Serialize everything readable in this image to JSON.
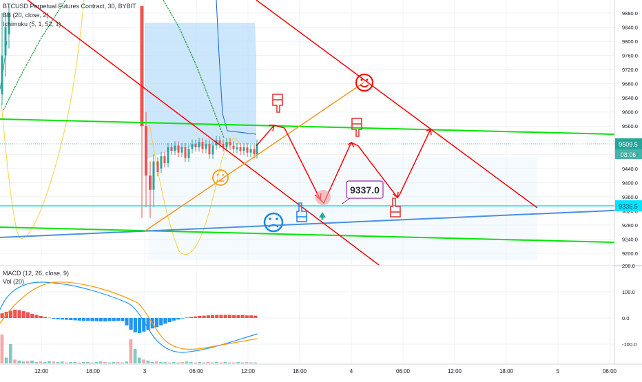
{
  "legend": {
    "symbol_line": "BTCUSD Perpetual Futures Contract, 30, BYBIT",
    "bb_line": "BB (20, close, 2)",
    "ichimoku_line": "Ichimoku (5, 1, 52, 1)",
    "macd_line": "MACD (12, 26, close, 9)",
    "vol_line": "Vol (20)"
  },
  "price_axis": {
    "ticks": [
      "9880.0",
      "9840.0",
      "9800.0",
      "9760.0",
      "9720.0",
      "9680.0",
      "9640.0",
      "9600.0",
      "9560.0",
      "9520.0",
      "9480.0",
      "9440.0",
      "9400.0",
      "9360.0",
      "9320.0",
      "9280.0",
      "9240.0",
      "9200.0"
    ],
    "current_price_label": "9509.5",
    "countdown_label": "08:06",
    "horizontal_level_label": "9336.5"
  },
  "macd_axis": {
    "ticks": [
      "200.0",
      "100.0",
      "0.0",
      "-100.0"
    ]
  },
  "time_axis": {
    "ticks": [
      "12:00",
      "18:00",
      "3",
      "06:00",
      "12:00",
      "18:00",
      "4",
      "06:00",
      "12:00",
      "18:00",
      "5",
      "06:00"
    ]
  },
  "annotation": {
    "price_callout": "9337.0"
  },
  "colors": {
    "trend_red": "#ff0000",
    "channel_green": "#00e600",
    "support_blue": "#4a90e2",
    "orange_line": "#f7931a",
    "horizontal_cyan": "#00e5ff",
    "candle_up": "#26a69a",
    "candle_down": "#ef5350",
    "macd_line": "#2196f3",
    "signal_line": "#ff9800",
    "cloud_blue": "#bbdefb"
  },
  "chart_data": {
    "type": "candlestick",
    "symbol": "BTCUSD",
    "timeframe": "30",
    "exchange": "BYBIT",
    "ylim": [
      9180,
      9900
    ],
    "price_ticks": [
      9880,
      9840,
      9800,
      9760,
      9720,
      9680,
      9640,
      9600,
      9560,
      9520,
      9480,
      9440,
      9400,
      9360,
      9320,
      9280,
      9240,
      9200
    ],
    "last_price": 9509.5,
    "horizontal_level": 9336.5,
    "price_callout": 9337.0,
    "macd_ylim": [
      -150,
      200
    ],
    "macd_ticks": [
      200,
      100,
      0,
      -100
    ],
    "macd_histogram": [
      18,
      24,
      28,
      32,
      30,
      26,
      22,
      16,
      12,
      8,
      4,
      1,
      -3,
      -5,
      -6,
      -7,
      -8,
      -9,
      -10,
      -11,
      -11,
      -12,
      -12,
      -13,
      -13,
      -12,
      -12,
      -11,
      -12,
      -28,
      -45,
      -55,
      -58,
      -52,
      -46,
      -40,
      -35,
      -28,
      -22,
      -16,
      -10,
      -6,
      -2,
      2,
      4,
      6,
      8,
      9,
      10,
      11,
      12,
      12,
      12,
      12,
      11,
      11,
      12,
      10,
      10,
      9
    ],
    "volume": [
      60,
      12,
      40,
      8,
      6,
      4,
      5,
      6,
      3,
      4,
      3,
      5,
      4,
      3,
      4,
      2,
      3,
      3,
      2,
      3,
      3,
      2,
      3,
      4,
      3,
      2,
      3,
      3,
      2,
      4,
      50,
      30,
      12,
      8,
      6,
      3,
      4,
      3,
      3,
      2,
      3,
      2,
      3,
      4,
      3,
      2,
      3,
      2,
      3,
      2,
      3,
      2,
      3,
      2,
      2,
      3,
      2,
      3,
      2,
      2
    ]
  }
}
